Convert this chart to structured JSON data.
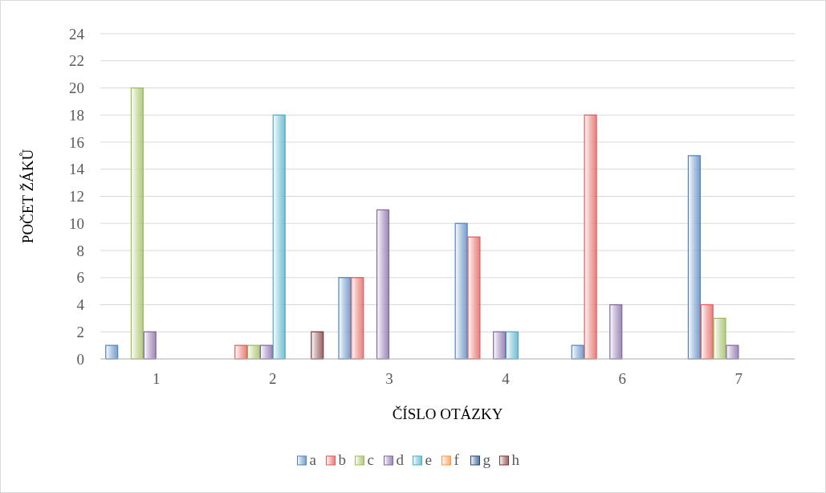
{
  "chart_data": {
    "type": "bar",
    "xlabel": "ČÍSLO OTÁZKY",
    "ylabel": "POČET ŽÁKŮ",
    "categories": [
      "1",
      "2",
      "3",
      "4",
      "6",
      "7"
    ],
    "series": [
      {
        "name": "a",
        "color": "#4f81bd",
        "values": [
          1,
          0,
          6,
          10,
          1,
          15
        ]
      },
      {
        "name": "b",
        "color": "#e05a55",
        "values": [
          0,
          1,
          6,
          9,
          18,
          4
        ]
      },
      {
        "name": "c",
        "color": "#9bbb59",
        "values": [
          20,
          1,
          0,
          0,
          0,
          3
        ]
      },
      {
        "name": "d",
        "color": "#8064a2",
        "values": [
          2,
          1,
          11,
          2,
          4,
          1
        ]
      },
      {
        "name": "e",
        "color": "#4bacc6",
        "values": [
          0,
          18,
          0,
          2,
          0,
          0
        ]
      },
      {
        "name": "f",
        "color": "#f79646",
        "values": [
          0,
          0,
          0,
          0,
          0,
          0
        ]
      },
      {
        "name": "g",
        "color": "#1f497d",
        "values": [
          0,
          0,
          0,
          0,
          0,
          0
        ]
      },
      {
        "name": "h",
        "color": "#7b3535",
        "values": [
          0,
          2,
          0,
          0,
          0,
          0
        ]
      }
    ],
    "ylim": [
      0,
      24
    ],
    "yticks": [
      0,
      2,
      4,
      6,
      8,
      10,
      12,
      14,
      16,
      18,
      20,
      22,
      24
    ],
    "grid": "y",
    "legend": "bottom"
  }
}
